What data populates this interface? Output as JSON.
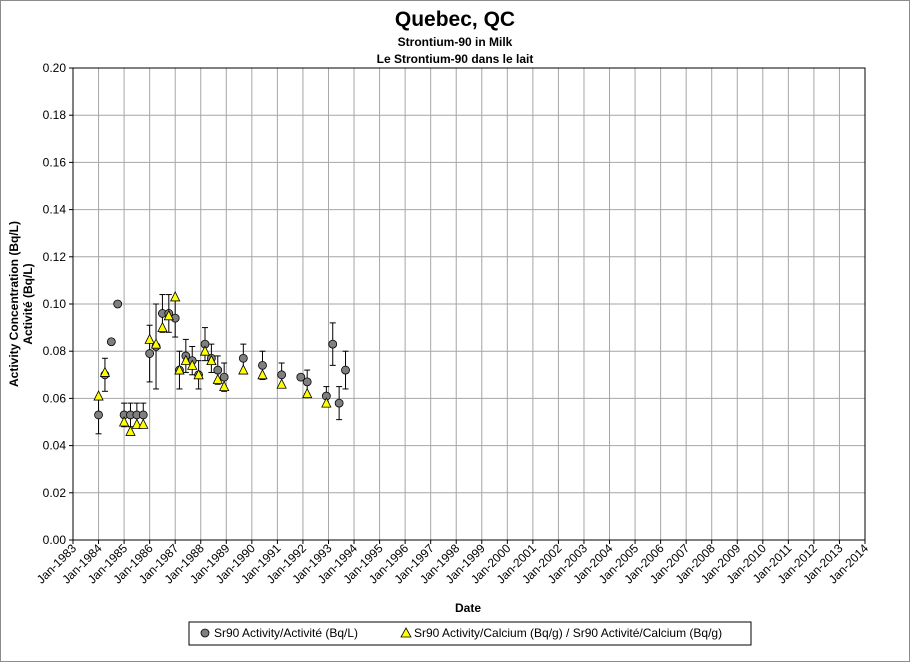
{
  "chart_data": {
    "type": "scatter",
    "title": "Quebec, QC",
    "subtitles": [
      "Strontium-90 in Milk",
      "Le Strontium-90 dans le lait"
    ],
    "xlabel": "Date",
    "ylabel": [
      "Activity Concentration (Bq/L)",
      "Activité (Bq/L)"
    ],
    "xlim": [
      "1983-01",
      "2014-01"
    ],
    "ylim": [
      0,
      0.2
    ],
    "yticks": [
      "0.00",
      "0.02",
      "0.04",
      "0.06",
      "0.08",
      "0.10",
      "0.12",
      "0.14",
      "0.16",
      "0.18",
      "0.20"
    ],
    "xticks": [
      "Jan-1983",
      "Jan-1984",
      "Jan-1985",
      "Jan-1986",
      "Jan-1987",
      "Jan-1988",
      "Jan-1989",
      "Jan-1990",
      "Jan-1991",
      "Jan-1992",
      "Jan-1993",
      "Jan-1994",
      "Jan-1995",
      "Jan-1996",
      "Jan-1997",
      "Jan-1998",
      "Jan-1999",
      "Jan-2000",
      "Jan-2001",
      "Jan-2002",
      "Jan-2003",
      "Jan-2004",
      "Jan-2005",
      "Jan-2006",
      "Jan-2007",
      "Jan-2008",
      "Jan-2009",
      "Jan-2010",
      "Jan-2011",
      "Jan-2012",
      "Jan-2013",
      "Jan-2014"
    ],
    "grid": true,
    "legend_position": "bottom",
    "series": [
      {
        "name": "Sr90 Activity/Activité (Bq/L)",
        "marker": "circle",
        "color": "#7f7f7f",
        "points": [
          {
            "x": "1984-01",
            "y": 0.053,
            "err": 0.008
          },
          {
            "x": "1984-04",
            "y": 0.07,
            "err": 0.007
          },
          {
            "x": "1984-07",
            "y": 0.084,
            "err": null
          },
          {
            "x": "1984-10",
            "y": 0.1,
            "err": null
          },
          {
            "x": "1985-01",
            "y": 0.053,
            "err": 0.005
          },
          {
            "x": "1985-04",
            "y": 0.053,
            "err": 0.005
          },
          {
            "x": "1985-07",
            "y": 0.053,
            "err": 0.005
          },
          {
            "x": "1985-10",
            "y": 0.053,
            "err": 0.005
          },
          {
            "x": "1986-01",
            "y": 0.079,
            "err": 0.012
          },
          {
            "x": "1986-04",
            "y": 0.082,
            "err": 0.018
          },
          {
            "x": "1986-07",
            "y": 0.096,
            "err": 0.008
          },
          {
            "x": "1986-10",
            "y": 0.096,
            "err": 0.008
          },
          {
            "x": "1987-01",
            "y": 0.094,
            "err": 0.008
          },
          {
            "x": "1987-03",
            "y": 0.072,
            "err": 0.008
          },
          {
            "x": "1987-06",
            "y": 0.078,
            "err": 0.007
          },
          {
            "x": "1987-09",
            "y": 0.076,
            "err": 0.006
          },
          {
            "x": "1987-12",
            "y": 0.07,
            "err": 0.006
          },
          {
            "x": "1988-03",
            "y": 0.083,
            "err": 0.007
          },
          {
            "x": "1988-06",
            "y": 0.077,
            "err": 0.006
          },
          {
            "x": "1988-09",
            "y": 0.072,
            "err": 0.006
          },
          {
            "x": "1988-12",
            "y": 0.069,
            "err": 0.006
          },
          {
            "x": "1989-09",
            "y": 0.077,
            "err": 0.006
          },
          {
            "x": "1990-06",
            "y": 0.074,
            "err": 0.006
          },
          {
            "x": "1991-03",
            "y": 0.07,
            "err": 0.005
          },
          {
            "x": "1991-12",
            "y": 0.069,
            "err": null
          },
          {
            "x": "1992-03",
            "y": 0.067,
            "err": 0.005
          },
          {
            "x": "1992-12",
            "y": 0.061,
            "err": 0.004
          },
          {
            "x": "1993-03",
            "y": 0.083,
            "err": 0.009
          },
          {
            "x": "1993-06",
            "y": 0.058,
            "err": 0.007
          },
          {
            "x": "1993-09",
            "y": 0.072,
            "err": 0.008
          }
        ]
      },
      {
        "name": "Sr90 Activity/Calcium (Bq/g) / Sr90 Activité/Calcium (Bq/g)",
        "marker": "triangle",
        "color": "#ffff00",
        "points": [
          {
            "x": "1984-01",
            "y": 0.061
          },
          {
            "x": "1984-04",
            "y": 0.071
          },
          {
            "x": "1985-01",
            "y": 0.05
          },
          {
            "x": "1985-04",
            "y": 0.046
          },
          {
            "x": "1985-07",
            "y": 0.049
          },
          {
            "x": "1985-10",
            "y": 0.049
          },
          {
            "x": "1986-01",
            "y": 0.085
          },
          {
            "x": "1986-04",
            "y": 0.083
          },
          {
            "x": "1986-07",
            "y": 0.09
          },
          {
            "x": "1986-10",
            "y": 0.095
          },
          {
            "x": "1987-01",
            "y": 0.103
          },
          {
            "x": "1987-03",
            "y": 0.072
          },
          {
            "x": "1987-06",
            "y": 0.076
          },
          {
            "x": "1987-09",
            "y": 0.074
          },
          {
            "x": "1987-12",
            "y": 0.07
          },
          {
            "x": "1988-03",
            "y": 0.08
          },
          {
            "x": "1988-06",
            "y": 0.076
          },
          {
            "x": "1988-09",
            "y": 0.068
          },
          {
            "x": "1988-12",
            "y": 0.065
          },
          {
            "x": "1989-09",
            "y": 0.072
          },
          {
            "x": "1990-06",
            "y": 0.07
          },
          {
            "x": "1991-03",
            "y": 0.066
          },
          {
            "x": "1992-03",
            "y": 0.062
          },
          {
            "x": "1992-12",
            "y": 0.058
          }
        ]
      }
    ]
  }
}
